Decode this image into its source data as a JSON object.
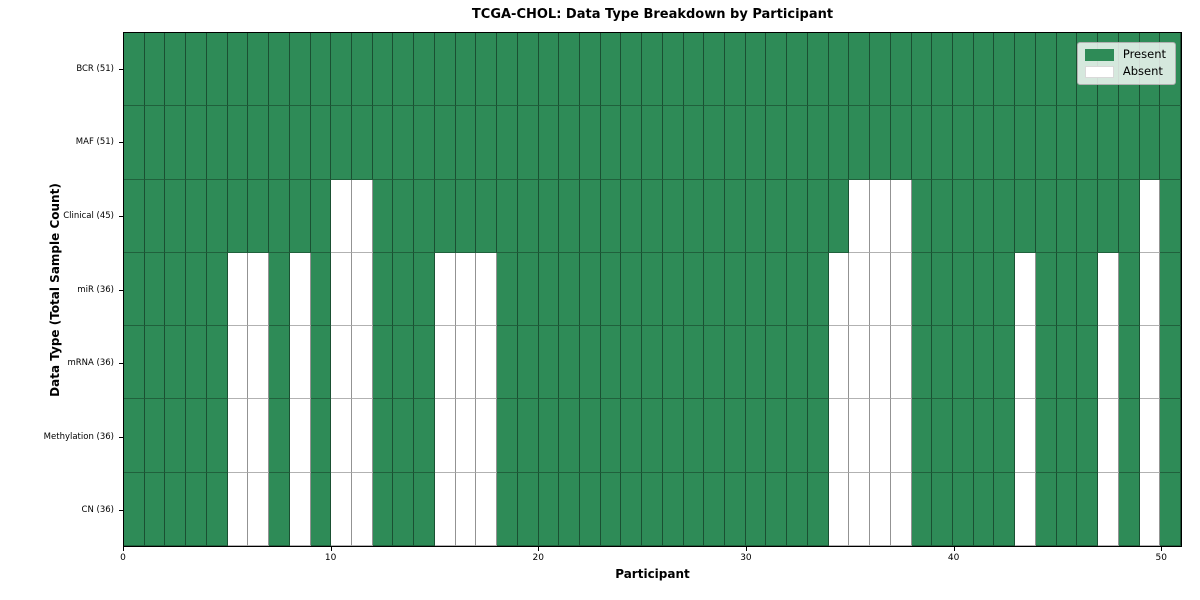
{
  "title": "TCGA-CHOL: Data Type Breakdown by Participant",
  "chart_data": {
    "type": "heatmap",
    "title": "TCGA-CHOL: Data Type Breakdown by Participant",
    "xlabel": "Participant",
    "ylabel": "Data Type (Total Sample Count)",
    "x_range": [
      0,
      51
    ],
    "n_participants": 51,
    "x_ticks": [
      0,
      10,
      20,
      30,
      40,
      50
    ],
    "grid": true,
    "legend_position": "upper right",
    "legend": [
      {
        "label": "Present",
        "color": "#2e8b57"
      },
      {
        "label": "Absent",
        "color": "#ffffff"
      }
    ],
    "colors": {
      "present": "#2e8b57",
      "absent": "#ffffff"
    },
    "rows": [
      {
        "label": "BCR (51)",
        "total": 51,
        "absent": []
      },
      {
        "label": "MAF (51)",
        "total": 51,
        "absent": []
      },
      {
        "label": "Clinical (45)",
        "total": 45,
        "absent": [
          10,
          11,
          35,
          36,
          37,
          49
        ]
      },
      {
        "label": "miR (36)",
        "total": 36,
        "absent": [
          5,
          6,
          8,
          10,
          11,
          15,
          16,
          17,
          34,
          35,
          36,
          37,
          43,
          47,
          49
        ]
      },
      {
        "label": "mRNA (36)",
        "total": 36,
        "absent": [
          5,
          6,
          8,
          10,
          11,
          15,
          16,
          17,
          34,
          35,
          36,
          37,
          43,
          47,
          49
        ]
      },
      {
        "label": "Methylation (36)",
        "total": 36,
        "absent": [
          5,
          6,
          8,
          10,
          11,
          15,
          16,
          17,
          34,
          35,
          36,
          37,
          43,
          47,
          49
        ]
      },
      {
        "label": "CN (36)",
        "total": 36,
        "absent": [
          5,
          6,
          8,
          10,
          11,
          15,
          16,
          17,
          34,
          35,
          36,
          37,
          43,
          47,
          49
        ]
      }
    ]
  }
}
